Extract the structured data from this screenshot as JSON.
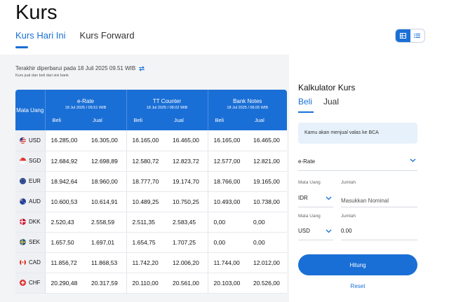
{
  "page": {
    "title": "Kurs"
  },
  "tabs": [
    {
      "label": "Kurs Hari Ini",
      "active": true
    },
    {
      "label": "Kurs Forward",
      "active": false
    }
  ],
  "view_toggle": {
    "options": [
      "grid-icon",
      "list-icon"
    ],
    "active": "grid-icon"
  },
  "updated": {
    "text": "Terakhir diperbarui pada 18 Juli 2025 09.51 WIB",
    "note": "Kurs jual dan beli dari sisi bank"
  },
  "table": {
    "currency_header": "Mata Uang",
    "groups": [
      {
        "name": "e-Rate",
        "date": "18 Jul 2025 / 09.51 WIB"
      },
      {
        "name": "TT Counter",
        "date": "18 Jul 2025 / 08.02 WIB"
      },
      {
        "name": "Bank Notes",
        "date": "18 Jul 2025 / 08.05 WIB"
      }
    ],
    "sub": {
      "beli": "Beli",
      "jual": "Jual"
    },
    "rows": [
      {
        "code": "USD",
        "vals": [
          "16.285,00",
          "16.305,00",
          "16.165,00",
          "16.465,00",
          "16.165,00",
          "16.465,00"
        ]
      },
      {
        "code": "SGD",
        "vals": [
          "12.684,92",
          "12.698,89",
          "12.580,72",
          "12.823,72",
          "12.577,00",
          "12.821,00"
        ]
      },
      {
        "code": "EUR",
        "vals": [
          "18.942,64",
          "18.960,00",
          "18.777,70",
          "19.174,70",
          "18.766,00",
          "19.165,00"
        ]
      },
      {
        "code": "AUD",
        "vals": [
          "10.600,53",
          "10.614,91",
          "10.489,25",
          "10.750,25",
          "10.493,00",
          "10.738,00"
        ]
      },
      {
        "code": "DKK",
        "vals": [
          "2.520,43",
          "2.558,59",
          "2.511,35",
          "2.583,45",
          "0,00",
          "0,00"
        ]
      },
      {
        "code": "SEK",
        "vals": [
          "1.657,50",
          "1.697,01",
          "1.654,75",
          "1.707,25",
          "0,00",
          "0,00"
        ]
      },
      {
        "code": "CAD",
        "vals": [
          "11.856,72",
          "11.868,53",
          "11.742,20",
          "12.006,20",
          "11.744,00",
          "12.012,00"
        ]
      },
      {
        "code": "CHF",
        "vals": [
          "20.290,48",
          "20.317,59",
          "20.110,00",
          "20.561,00",
          "20.103,00",
          "20.526,00"
        ]
      }
    ]
  },
  "calculator": {
    "title": "Kalkulator Kurs",
    "tabs": [
      "Beli",
      "Jual"
    ],
    "active_tab": "Beli",
    "info": "Kamu akan menjual valas ke BCA",
    "rate_type": "e-Rate",
    "from": {
      "currency_label": "Mata Uang",
      "currency": "IDR",
      "amount_label": "Jumlah",
      "amount_placeholder": "Masukkan Nominal"
    },
    "to": {
      "currency_label": "Mata Uang",
      "currency": "USD",
      "amount_label": "Jumlah",
      "amount_value": "0.00"
    },
    "submit": "Hitung",
    "reset": "Reset"
  },
  "colors": {
    "primary": "#1a6fd6",
    "content_bg": "#f3f4f6",
    "info_bg": "#e6f1fb"
  }
}
